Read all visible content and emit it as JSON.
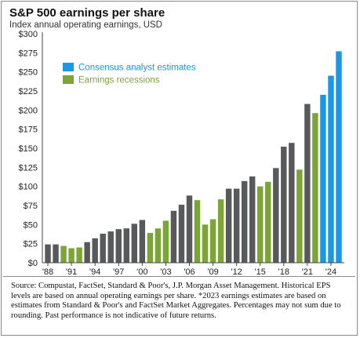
{
  "title": "S&P 500 earnings per share",
  "subtitle": "Index annual operating earnings, USD",
  "source_note": "Source: Compustat, FactSet, Standard & Poor's, J.P. Morgan Asset Management. Historical EPS levels are based on annual operating earnings per share. *2023 earnings estimates are based on estimates from Standard & Poor's and FactSet Market Aggregates. Percentages may not sum due to rounding. Past performance is not indicative of future returns.",
  "colors": {
    "default": "#58595b",
    "recession": "#7da33b",
    "estimate": "#1a97e6",
    "axis": "#444444"
  },
  "chart_data": {
    "type": "bar",
    "title": "S&P 500 earnings per share",
    "subtitle": "Index annual operating earnings, USD",
    "xlabel": "",
    "ylabel": "",
    "ylim": [
      0,
      300
    ],
    "y_ticks": [
      0,
      25,
      50,
      75,
      100,
      125,
      150,
      175,
      200,
      225,
      250,
      275,
      300
    ],
    "y_tick_labels": [
      "$0",
      "$25",
      "$50",
      "$75",
      "$100",
      "$125",
      "$150",
      "$175",
      "$200",
      "$225",
      "$250",
      "$275",
      "$300"
    ],
    "x_tick_labels": [
      "'88",
      "'91",
      "'94",
      "'97",
      "'00",
      "'03",
      "'06",
      "'09",
      "'12",
      "'15",
      "'18",
      "'21",
      "'24"
    ],
    "x_tick_years": [
      1988,
      1991,
      1994,
      1997,
      2000,
      2003,
      2006,
      2009,
      2012,
      2015,
      2018,
      2021,
      2024
    ],
    "grid": false,
    "legend_position": "top-left",
    "legend": [
      {
        "label": "Consensus analyst estimates",
        "category": "estimate"
      },
      {
        "label": "Earnings recessions",
        "category": "recession"
      }
    ],
    "categories": [
      1988,
      1989,
      1990,
      1991,
      1992,
      1993,
      1994,
      1995,
      1996,
      1997,
      1998,
      1999,
      2000,
      2001,
      2002,
      2003,
      2004,
      2005,
      2006,
      2007,
      2008,
      2009,
      2010,
      2011,
      2012,
      2013,
      2014,
      2015,
      2016,
      2017,
      2018,
      2019,
      2020,
      2021,
      2022,
      2023,
      2024,
      2025
    ],
    "values": [
      24,
      24,
      22,
      19,
      20,
      27,
      32,
      38,
      41,
      44,
      45,
      51,
      56,
      39,
      45,
      55,
      68,
      76,
      88,
      82,
      50,
      57,
      83,
      97,
      97,
      107,
      113,
      100,
      106,
      124,
      152,
      157,
      122,
      208,
      196,
      220,
      245,
      277
    ],
    "bar_types": [
      "default",
      "default",
      "recession",
      "recession",
      "recession",
      "default",
      "default",
      "default",
      "default",
      "default",
      "default",
      "default",
      "default",
      "recession",
      "recession",
      "recession",
      "default",
      "default",
      "default",
      "recession",
      "recession",
      "recession",
      "recession",
      "default",
      "default",
      "default",
      "default",
      "recession",
      "recession",
      "default",
      "default",
      "default",
      "recession",
      "default",
      "recession",
      "estimate",
      "estimate",
      "estimate"
    ]
  }
}
